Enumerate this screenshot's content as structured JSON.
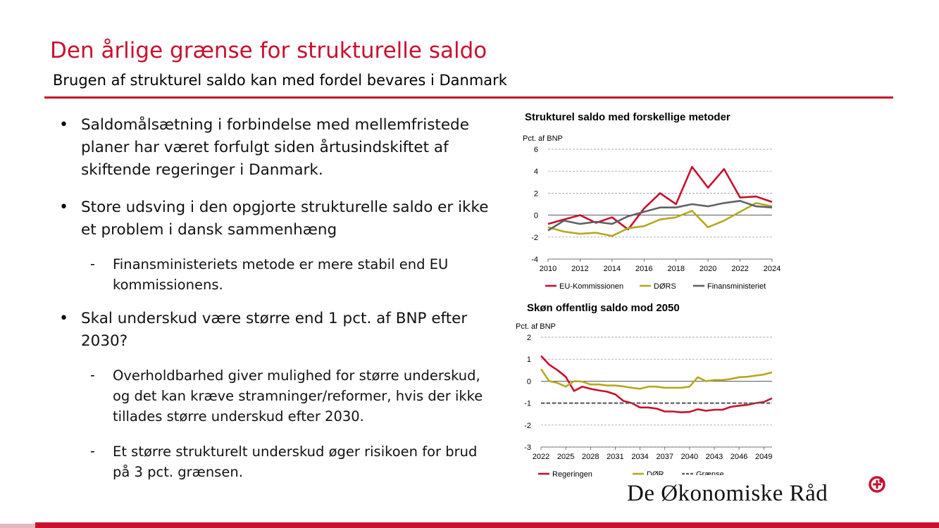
{
  "slide": {
    "title": "Den årlige grænse for strukturelle saldo",
    "subtitle": "Brugen af strukturel saldo kan med fordel bevares i Danmark"
  },
  "bullets": [
    {
      "lines": [
        "Saldomålsætning i forbindelse med mellemfristede",
        "planer har været forfulgt siden årtusindskiftet af",
        "skiftende regeringer i Danmark."
      ]
    },
    {
      "lines": [
        "Store udsving i den opgjorte strukturelle saldo er ikke",
        "et problem i dansk sammenhæng"
      ],
      "subs": [
        {
          "lines": [
            "Finansministeriets metode er mere stabil end EU",
            "kommissionens."
          ]
        }
      ]
    },
    {
      "lines": [
        "Skal underskud være større end 1 pct. af BNP efter",
        "2030?"
      ],
      "subs": [
        {
          "lines": [
            "Overholdbarhed giver mulighed for større underskud,",
            "og det kan kræve stramninger/reformer, hvis der ikke",
            "tillades større underskud efter 2030."
          ]
        },
        {
          "lines": [
            "Et større strukturelt underskud øger risikoen for brud",
            "på 3 pct. grænsen."
          ]
        }
      ]
    }
  ],
  "bullet_symbol": "•",
  "dash_symbol": "-",
  "chart_data": [
    {
      "type": "line",
      "title": "Strukturel saldo med forskellige metoder",
      "ylabel": "Pct. af BNP",
      "ylim": [
        -4,
        6
      ],
      "yticks": [
        "6",
        "4",
        "2",
        "0",
        "-2",
        "-4"
      ],
      "xticks": [
        "2010",
        "2012",
        "2014",
        "2016",
        "2018",
        "2020",
        "2022",
        "2024"
      ],
      "grid": true,
      "legend": "bottom",
      "x": [
        2010,
        2011,
        2012,
        2013,
        2014,
        2015,
        2016,
        2017,
        2018,
        2019,
        2020,
        2021,
        2022,
        2023,
        2024
      ],
      "series": [
        {
          "name": "EU-Kommissionen",
          "color": "#c8102e",
          "values": [
            -0.8,
            -0.4,
            0.0,
            -0.7,
            -0.2,
            -1.3,
            0.6,
            2.0,
            1.0,
            4.4,
            2.5,
            4.2,
            1.6,
            1.7,
            1.2
          ]
        },
        {
          "name": "DØRS",
          "color": "#b5a81e",
          "values": [
            -1.1,
            -1.5,
            -1.7,
            -1.6,
            -1.9,
            -1.2,
            -1.0,
            -0.4,
            -0.2,
            0.4,
            -1.1,
            -0.5,
            0.3,
            1.1,
            0.8
          ]
        },
        {
          "name": "Finansministeriet",
          "color": "#5f6266",
          "values": [
            -1.4,
            -0.5,
            -0.8,
            -0.6,
            -0.8,
            -0.1,
            0.3,
            0.7,
            0.7,
            1.0,
            0.8,
            1.1,
            1.3,
            0.8,
            0.7
          ]
        }
      ]
    },
    {
      "type": "line",
      "title": "Skøn offentlig saldo mod 2050",
      "ylabel": "Pct. af BNP",
      "ylim": [
        -3,
        2
      ],
      "yticks": [
        "2",
        "1",
        "0",
        "-1",
        "-2",
        "-3"
      ],
      "xticks": [
        "2022",
        "2025",
        "2028",
        "2031",
        "2034",
        "2037",
        "2040",
        "2043",
        "2046",
        "2049"
      ],
      "grid": true,
      "legend": "bottom",
      "x": [
        2022,
        2023,
        2024,
        2025,
        2026,
        2027,
        2028,
        2029,
        2030,
        2031,
        2032,
        2033,
        2034,
        2035,
        2036,
        2037,
        2038,
        2039,
        2040,
        2041,
        2042,
        2043,
        2044,
        2045,
        2046,
        2047,
        2048,
        2049,
        2050
      ],
      "series": [
        {
          "name": "Regeringen",
          "color": "#c8102e",
          "values": [
            1.15,
            0.75,
            0.5,
            0.2,
            -0.45,
            -0.25,
            -0.35,
            -0.42,
            -0.48,
            -0.6,
            -0.9,
            -1.0,
            -1.2,
            -1.2,
            -1.25,
            -1.38,
            -1.38,
            -1.42,
            -1.4,
            -1.28,
            -1.35,
            -1.3,
            -1.3,
            -1.17,
            -1.12,
            -1.08,
            -1.0,
            -0.95,
            -0.78
          ]
        },
        {
          "name": "DØR",
          "color": "#b5a81e",
          "values": [
            0.55,
            0.0,
            -0.08,
            -0.25,
            0.0,
            -0.02,
            -0.15,
            -0.15,
            -0.2,
            -0.2,
            -0.24,
            -0.3,
            -0.35,
            -0.25,
            -0.25,
            -0.3,
            -0.3,
            -0.3,
            -0.25,
            0.18,
            0.0,
            0.05,
            0.05,
            0.1,
            0.18,
            0.2,
            0.25,
            0.3,
            0.4
          ]
        },
        {
          "name": "Grænse",
          "color": "#5f6266",
          "dashed": true,
          "values": [
            -1,
            -1,
            -1,
            -1,
            -1,
            -1,
            -1,
            -1,
            -1,
            -1,
            -1,
            -1,
            -1,
            -1,
            -1,
            -1,
            -1,
            -1,
            -1,
            -1,
            -1,
            -1,
            -1,
            -1,
            -1,
            -1,
            -1,
            -1,
            -1
          ]
        }
      ]
    }
  ],
  "logo": {
    "text": "De Økonomiske Råd",
    "color": "#c8102e"
  }
}
